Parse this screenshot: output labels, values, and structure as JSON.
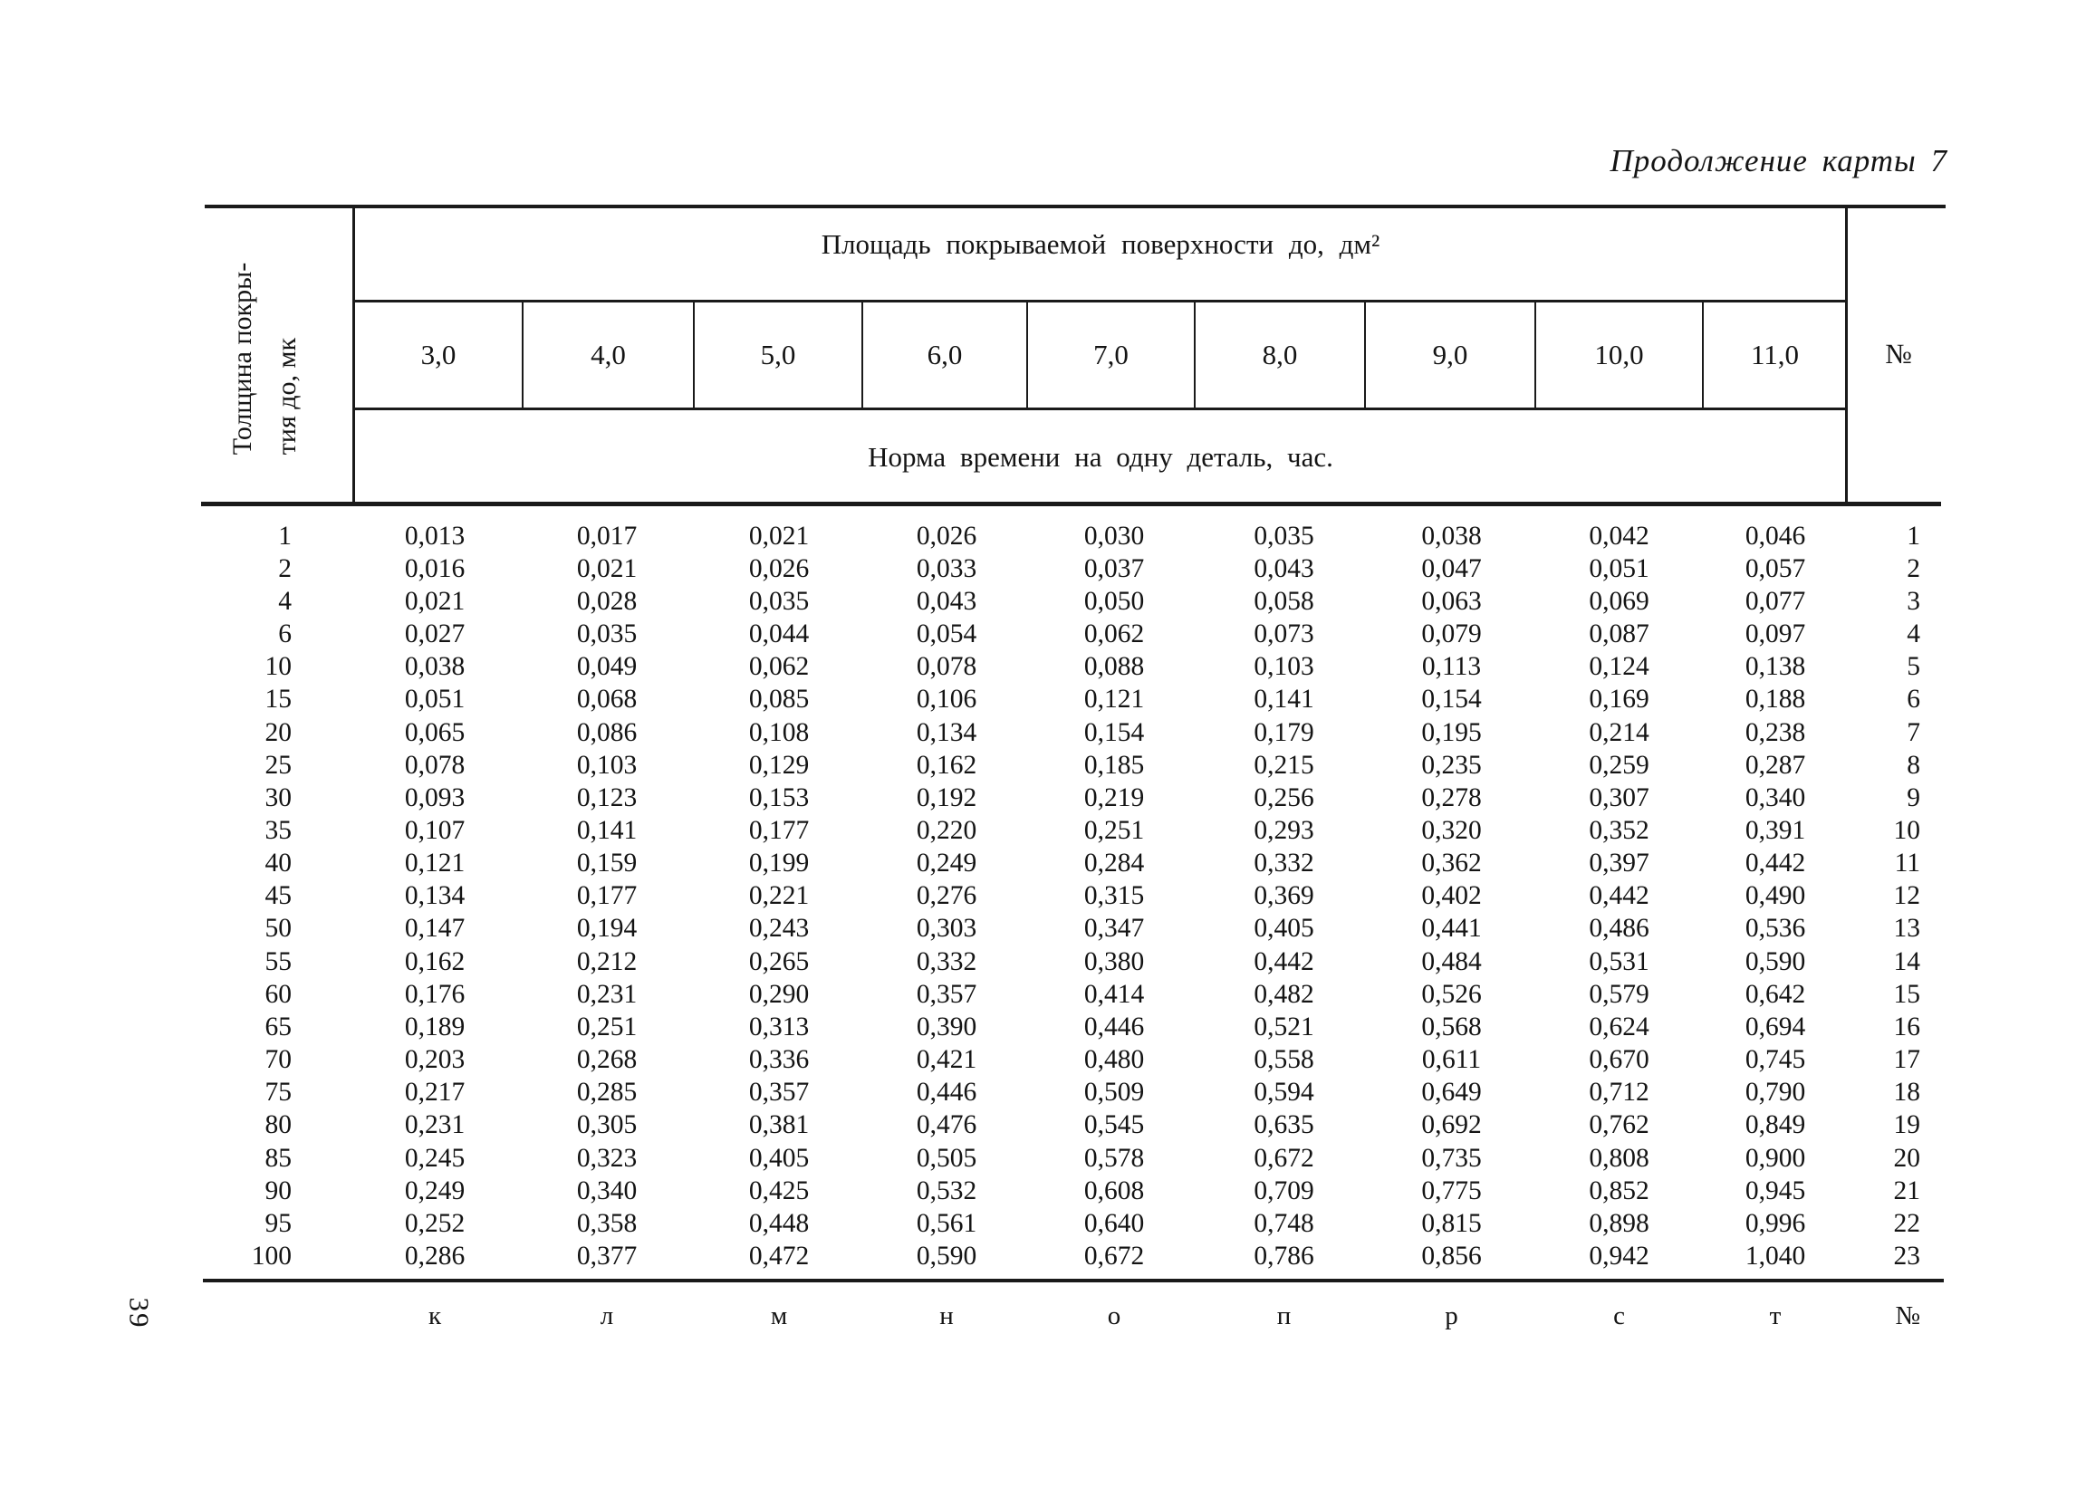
{
  "doc": {
    "title": "Продолжение карты 7",
    "page_number": "39"
  },
  "table": {
    "corner_header": {
      "line1": "Толщина покры-",
      "line2": "тия до, мк"
    },
    "area_header": "Площадь покрываемой поверхности до, дм²",
    "norm_header": "Норма времени на одну деталь, час.",
    "area_columns": [
      "3,0",
      "4,0",
      "5,0",
      "6,0",
      "7,0",
      "8,0",
      "9,0",
      "10,0",
      "11,0"
    ],
    "row_number_header": "№",
    "rows": [
      {
        "thickness": "1",
        "values": [
          "0,013",
          "0,017",
          "0,021",
          "0,026",
          "0,030",
          "0,035",
          "0,038",
          "0,042",
          "0,046"
        ],
        "num": "1"
      },
      {
        "thickness": "2",
        "values": [
          "0,016",
          "0,021",
          "0,026",
          "0,033",
          "0,037",
          "0,043",
          "0,047",
          "0,051",
          "0,057"
        ],
        "num": "2"
      },
      {
        "thickness": "4",
        "values": [
          "0,021",
          "0,028",
          "0,035",
          "0,043",
          "0,050",
          "0,058",
          "0,063",
          "0,069",
          "0,077"
        ],
        "num": "3"
      },
      {
        "thickness": "6",
        "values": [
          "0,027",
          "0,035",
          "0,044",
          "0,054",
          "0,062",
          "0,073",
          "0,079",
          "0,087",
          "0,097"
        ],
        "num": "4"
      },
      {
        "thickness": "10",
        "values": [
          "0,038",
          "0,049",
          "0,062",
          "0,078",
          "0,088",
          "0,103",
          "0,113",
          "0,124",
          "0,138"
        ],
        "num": "5"
      },
      {
        "thickness": "15",
        "values": [
          "0,051",
          "0,068",
          "0,085",
          "0,106",
          "0,121",
          "0,141",
          "0,154",
          "0,169",
          "0,188"
        ],
        "num": "6"
      },
      {
        "thickness": "20",
        "values": [
          "0,065",
          "0,086",
          "0,108",
          "0,134",
          "0,154",
          "0,179",
          "0,195",
          "0,214",
          "0,238"
        ],
        "num": "7"
      },
      {
        "thickness": "25",
        "values": [
          "0,078",
          "0,103",
          "0,129",
          "0,162",
          "0,185",
          "0,215",
          "0,235",
          "0,259",
          "0,287"
        ],
        "num": "8"
      },
      {
        "thickness": "30",
        "values": [
          "0,093",
          "0,123",
          "0,153",
          "0,192",
          "0,219",
          "0,256",
          "0,278",
          "0,307",
          "0,340"
        ],
        "num": "9"
      },
      {
        "thickness": "35",
        "values": [
          "0,107",
          "0,141",
          "0,177",
          "0,220",
          "0,251",
          "0,293",
          "0,320",
          "0,352",
          "0,391"
        ],
        "num": "10"
      },
      {
        "thickness": "40",
        "values": [
          "0,121",
          "0,159",
          "0,199",
          "0,249",
          "0,284",
          "0,332",
          "0,362",
          "0,397",
          "0,442"
        ],
        "num": "11"
      },
      {
        "thickness": "45",
        "values": [
          "0,134",
          "0,177",
          "0,221",
          "0,276",
          "0,315",
          "0,369",
          "0,402",
          "0,442",
          "0,490"
        ],
        "num": "12"
      },
      {
        "thickness": "50",
        "values": [
          "0,147",
          "0,194",
          "0,243",
          "0,303",
          "0,347",
          "0,405",
          "0,441",
          "0,486",
          "0,536"
        ],
        "num": "13"
      },
      {
        "thickness": "55",
        "values": [
          "0,162",
          "0,212",
          "0,265",
          "0,332",
          "0,380",
          "0,442",
          "0,484",
          "0,531",
          "0,590"
        ],
        "num": "14"
      },
      {
        "thickness": "60",
        "values": [
          "0,176",
          "0,231",
          "0,290",
          "0,357",
          "0,414",
          "0,482",
          "0,526",
          "0,579",
          "0,642"
        ],
        "num": "15"
      },
      {
        "thickness": "65",
        "values": [
          "0,189",
          "0,251",
          "0,313",
          "0,390",
          "0,446",
          "0,521",
          "0,568",
          "0,624",
          "0,694"
        ],
        "num": "16"
      },
      {
        "thickness": "70",
        "values": [
          "0,203",
          "0,268",
          "0,336",
          "0,421",
          "0,480",
          "0,558",
          "0,611",
          "0,670",
          "0,745"
        ],
        "num": "17"
      },
      {
        "thickness": "75",
        "values": [
          "0,217",
          "0,285",
          "0,357",
          "0,446",
          "0,509",
          "0,594",
          "0,649",
          "0,712",
          "0,790"
        ],
        "num": "18"
      },
      {
        "thickness": "80",
        "values": [
          "0,231",
          "0,305",
          "0,381",
          "0,476",
          "0,545",
          "0,635",
          "0,692",
          "0,762",
          "0,849"
        ],
        "num": "19"
      },
      {
        "thickness": "85",
        "values": [
          "0,245",
          "0,323",
          "0,405",
          "0,505",
          "0,578",
          "0,672",
          "0,735",
          "0,808",
          "0,900"
        ],
        "num": "20"
      },
      {
        "thickness": "90",
        "values": [
          "0,249",
          "0,340",
          "0,425",
          "0,532",
          "0,608",
          "0,709",
          "0,775",
          "0,852",
          "0,945"
        ],
        "num": "21"
      },
      {
        "thickness": "95",
        "values": [
          "0,252",
          "0,358",
          "0,448",
          "0,561",
          "0,640",
          "0,748",
          "0,815",
          "0,898",
          "0,996"
        ],
        "num": "22"
      },
      {
        "thickness": "100",
        "values": [
          "0,286",
          "0,377",
          "0,472",
          "0,590",
          "0,672",
          "0,786",
          "0,856",
          "0,942",
          "1,040"
        ],
        "num": "23"
      }
    ],
    "footer": {
      "letters": [
        "к",
        "л",
        "м",
        "н",
        "о",
        "п",
        "р",
        "с",
        "т"
      ],
      "num_label": "№"
    }
  }
}
